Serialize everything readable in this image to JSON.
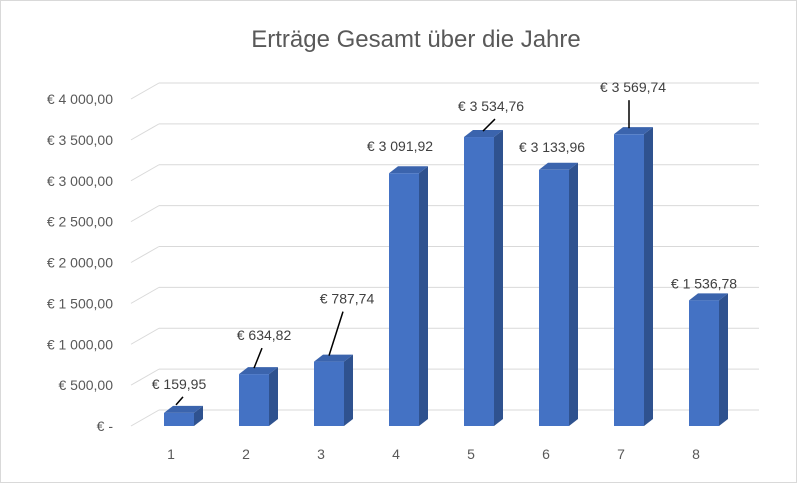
{
  "chart_data": {
    "type": "bar",
    "title": "Erträge Gesamt über die Jahre",
    "categories": [
      "1",
      "2",
      "3",
      "4",
      "5",
      "6",
      "7",
      "8"
    ],
    "values": [
      159.95,
      634.82,
      787.74,
      3091.92,
      3534.76,
      3133.96,
      3569.74,
      1536.78
    ],
    "data_labels": [
      "€  159,95",
      "€  634,82",
      "€  787,74",
      "€ 3 091,92",
      "€ 3 534,76",
      "€ 3 133,96",
      "€ 3 569,74",
      "€ 1 536,78"
    ],
    "y_ticks": [
      0,
      500,
      1000,
      1500,
      2000,
      2500,
      3000,
      3500,
      4000
    ],
    "y_tick_labels": [
      "€ -",
      "€ 500,00",
      "€ 1 000,00",
      "€ 1 500,00",
      "€ 2 000,00",
      "€ 2 500,00",
      "€ 3 000,00",
      "€ 3 500,00",
      "€ 4 000,00"
    ],
    "ylim": [
      0,
      4000
    ],
    "xlabel": "",
    "ylabel": "",
    "grid": true,
    "legend": "none",
    "style": "3d-column",
    "colors": {
      "bar_front": "#4472c4",
      "bar_side": "#2f528f",
      "bar_top": "#3b64ad",
      "grid": "#d9d9d9",
      "text": "#595959"
    }
  }
}
